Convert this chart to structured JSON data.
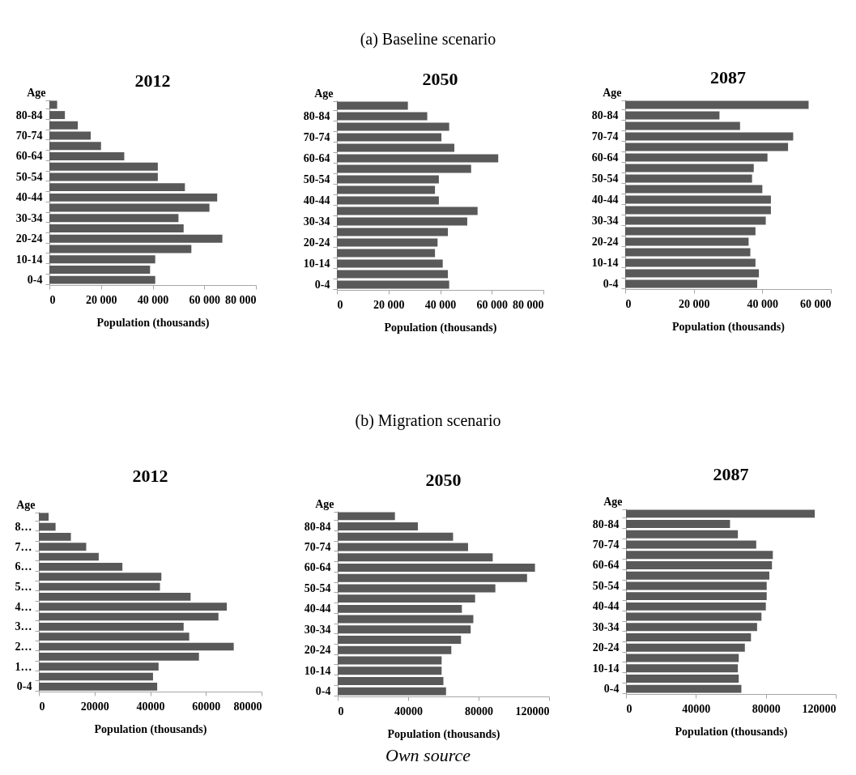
{
  "chart_data": [
    {
      "type": "bar",
      "orientation": "horizontal",
      "title": "2012",
      "xlabel": "Population (thousands)",
      "ylabel": "Age",
      "annotations": [
        "(a) Baseline scenario"
      ],
      "color": "#595959",
      "categories": [
        null,
        "80-84",
        null,
        "70-74",
        null,
        "60-64",
        null,
        "50-54",
        null,
        "40-44",
        null,
        "30-34",
        null,
        "20-24",
        null,
        "10-14",
        null,
        "0-4"
      ],
      "values": [
        3000,
        6000,
        11000,
        16000,
        20000,
        29000,
        42000,
        42000,
        52500,
        65000,
        62000,
        50000,
        52000,
        67000,
        55000,
        41000,
        39000,
        41000
      ],
      "xlim": [
        0,
        80000
      ],
      "xticks": [
        0,
        {
          "value": 20000,
          "label": "20 000"
        },
        {
          "value": 40000,
          "label": "40 000"
        },
        {
          "value": 60000,
          "label": "60 000"
        },
        {
          "value": 80000,
          "label": "80 000"
        }
      ]
    },
    {
      "type": "bar",
      "orientation": "horizontal",
      "title": "2050",
      "xlabel": "Population (thousands)",
      "ylabel": "Age",
      "color": "#595959",
      "categories": [
        null,
        "80-84",
        null,
        "70-74",
        null,
        "60-64",
        null,
        "50-54",
        null,
        "40-44",
        null,
        "30-34",
        null,
        "20-24",
        null,
        "10-14",
        null,
        "0-4"
      ],
      "values": [
        27500,
        35000,
        43500,
        40500,
        45500,
        62500,
        52000,
        39500,
        38000,
        39500,
        54500,
        50500,
        43000,
        39000,
        38000,
        41000,
        43000,
        43500
      ],
      "xlim": [
        0,
        80000
      ],
      "xticks": [
        0,
        {
          "value": 20000,
          "label": "20 000"
        },
        {
          "value": 40000,
          "label": "40 000"
        },
        {
          "value": 60000,
          "label": "60 000"
        },
        {
          "value": 80000,
          "label": "80 000"
        }
      ]
    },
    {
      "type": "bar",
      "orientation": "horizontal",
      "title": "2087",
      "xlabel": "Population (thousands)",
      "ylabel": "Age",
      "color": "#595959",
      "categories": [
        null,
        "80-84",
        null,
        "70-74",
        null,
        "60-64",
        null,
        "50-54",
        null,
        "40-44",
        null,
        "30-34",
        null,
        "20-24",
        null,
        "10-14",
        null,
        "0-4"
      ],
      "values": [
        53500,
        27500,
        33500,
        49000,
        47500,
        41500,
        37500,
        37000,
        40000,
        42500,
        42500,
        41000,
        38000,
        36000,
        36500,
        38000,
        39000,
        38500
      ],
      "xlim": [
        0,
        60000
      ],
      "xticks": [
        0,
        {
          "value": 20000,
          "label": "20 000"
        },
        {
          "value": 40000,
          "label": "40 000"
        },
        {
          "value": 60000,
          "label": "60 000"
        }
      ]
    },
    {
      "type": "bar",
      "orientation": "horizontal",
      "title": "2012",
      "xlabel": "Population (thousands)",
      "ylabel": "Age",
      "annotations": [
        "(b) Migration scenario"
      ],
      "color": "#595959",
      "categories": [
        null,
        "8…",
        null,
        "7…",
        null,
        "6…",
        null,
        "5…",
        null,
        "4…",
        null,
        "3…",
        null,
        "2…",
        null,
        "1…",
        null,
        "0-4"
      ],
      "values": [
        3500,
        6000,
        11500,
        17000,
        21500,
        30000,
        44000,
        43500,
        54500,
        67500,
        64500,
        52000,
        54000,
        70000,
        57500,
        43000,
        41000,
        42500
      ],
      "xlim": [
        0,
        80000
      ],
      "xticks": [
        0,
        20000,
        40000,
        60000,
        80000
      ]
    },
    {
      "type": "bar",
      "orientation": "horizontal",
      "title": "2050",
      "xlabel": "Population (thousands)",
      "ylabel": "Age",
      "color": "#595959",
      "categories": [
        null,
        "80-84",
        null,
        "70-74",
        null,
        "60-64",
        null,
        "50-54",
        null,
        "40-44",
        null,
        "30-34",
        null,
        "20-24",
        null,
        "10-14",
        null,
        "0-4"
      ],
      "values": [
        32500,
        45500,
        65500,
        74000,
        88000,
        112000,
        107500,
        89500,
        78000,
        70500,
        77000,
        75500,
        70000,
        64500,
        59000,
        59000,
        60000,
        61500
      ],
      "xlim": [
        0,
        120000
      ],
      "xticks": [
        0,
        40000,
        80000,
        120000
      ]
    },
    {
      "type": "bar",
      "orientation": "horizontal",
      "title": "2087",
      "xlabel": "Population (thousands)",
      "ylabel": "Age",
      "annotations": [
        "Own source"
      ],
      "color": "#595959",
      "categories": [
        null,
        "80-84",
        null,
        "70-74",
        null,
        "60-64",
        null,
        "50-54",
        null,
        "40-44",
        null,
        "30-34",
        null,
        "20-24",
        null,
        "10-14",
        null,
        "0-4"
      ],
      "values": [
        108000,
        59500,
        64000,
        74500,
        84000,
        83500,
        82000,
        80500,
        80500,
        80000,
        77500,
        75000,
        71500,
        68000,
        64500,
        64000,
        64500,
        66000
      ],
      "xlim": [
        0,
        120000
      ],
      "xticks": [
        0,
        40000,
        80000,
        120000
      ]
    }
  ]
}
